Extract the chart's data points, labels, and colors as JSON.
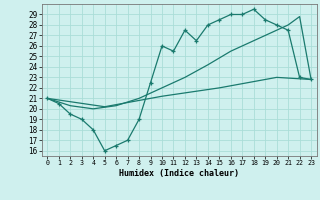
{
  "xlabel": "Humidex (Indice chaleur)",
  "bg_color": "#cff0ee",
  "line_color": "#1a7a6e",
  "grid_color": "#aaddd8",
  "x_ticks": [
    0,
    1,
    2,
    3,
    4,
    5,
    6,
    7,
    8,
    9,
    10,
    11,
    12,
    13,
    14,
    15,
    16,
    17,
    18,
    19,
    20,
    21,
    22,
    23
  ],
  "y_ticks": [
    16,
    17,
    18,
    19,
    20,
    21,
    22,
    23,
    24,
    25,
    26,
    27,
    28,
    29
  ],
  "xlim": [
    -0.5,
    23.5
  ],
  "ylim": [
    15.5,
    30.0
  ],
  "line1_x": [
    0,
    1,
    2,
    3,
    4,
    5,
    6,
    7,
    8,
    9,
    10,
    11,
    12,
    13,
    14,
    15,
    16,
    17,
    18,
    19,
    20,
    21,
    22,
    23
  ],
  "line1_y": [
    21,
    20.5,
    19.5,
    19.0,
    18.0,
    16.0,
    16.5,
    17.0,
    19.0,
    22.5,
    26.0,
    25.5,
    27.5,
    26.5,
    28.0,
    28.5,
    29.0,
    29.0,
    29.5,
    28.5,
    28.0,
    27.5,
    23.0,
    22.8
  ],
  "line2_x": [
    0,
    2,
    4,
    6,
    8,
    10,
    12,
    14,
    16,
    18,
    19,
    20,
    21,
    22,
    23
  ],
  "line2_y": [
    21,
    20.3,
    20.0,
    20.3,
    21.0,
    22.0,
    23.0,
    24.2,
    25.5,
    26.5,
    27.0,
    27.5,
    28.0,
    28.8,
    22.8
  ],
  "line3_x": [
    0,
    5,
    10,
    15,
    20,
    23
  ],
  "line3_y": [
    21,
    20.2,
    21.2,
    22.0,
    23.0,
    22.8
  ]
}
